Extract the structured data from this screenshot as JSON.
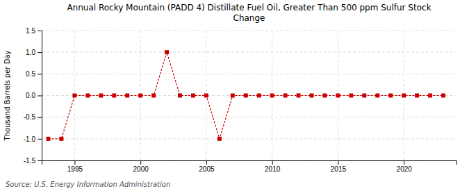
{
  "chart_data": {
    "type": "line",
    "title": "Annual Rocky Mountain (PADD 4) Distillate Fuel Oil, Greater Than 500 ppm Sulfur Stock\nChange",
    "y_label": "Thousand Barrels per Day",
    "source": "Source: U.S. Energy Information Administration",
    "x": [
      1993,
      1994,
      1995,
      1996,
      1997,
      1998,
      1999,
      2000,
      2001,
      2002,
      2003,
      2004,
      2005,
      2006,
      2007,
      2008,
      2009,
      2010,
      2011,
      2012,
      2013,
      2014,
      2015,
      2016,
      2017,
      2018,
      2019,
      2020,
      2021,
      2022,
      2023
    ],
    "values": [
      -1.0,
      -1.0,
      0.0,
      0.0,
      0.0,
      0.0,
      0.0,
      0.0,
      0.0,
      1.0,
      0.0,
      0.0,
      0.0,
      -1.0,
      0.0,
      0.0,
      0.0,
      0.0,
      0.0,
      0.0,
      0.0,
      0.0,
      0.0,
      0.0,
      0.0,
      0.0,
      0.0,
      0.0,
      0.0,
      0.0,
      0.0
    ],
    "color": "#cc0000",
    "marker": "square",
    "line_style": "dashed",
    "xlim": [
      1992.5,
      2024
    ],
    "xticks": [
      1995,
      2000,
      2005,
      2010,
      2015,
      2020
    ],
    "ylim": [
      -1.5,
      1.5
    ],
    "yticks": [
      -1.5,
      {
        "value": -1.0,
        "label": "-1.0"
      },
      -0.5,
      {
        "value": 0.0,
        "label": "0.0"
      },
      0.5,
      {
        "value": 1.0,
        "label": "1.0"
      },
      1.5
    ],
    "grid": true
  }
}
